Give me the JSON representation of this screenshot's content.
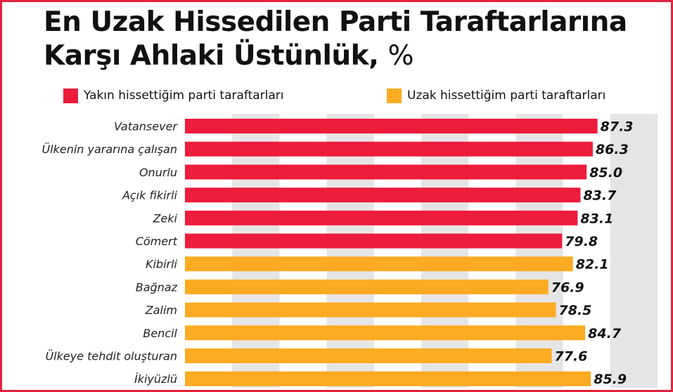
{
  "header": {
    "title": "En Uzak Hissedilen Parti Taraftarlarına Karşı Ahlaki Üstünlük,",
    "unit": "%"
  },
  "chart_data": {
    "type": "bar",
    "orientation": "horizontal",
    "title": "En Uzak Hissedilen Parti Taraftarlarına Karşı Ahlaki Üstünlük, %",
    "xlim": [
      0,
      100
    ],
    "legend_position": "top",
    "series": [
      {
        "name": "Yakın hissettiğim parti taraftarları",
        "color": "#ed1c3b"
      },
      {
        "name": "Uzak hissettiğim parti taraftarları",
        "color": "#fbab21"
      }
    ],
    "categories": [
      "Vatansever",
      "Ülkenin yararına çalışan",
      "Onurlu",
      "Açık fikirli",
      "Zeki",
      "Cömert",
      "Kibirli",
      "Bağnaz",
      "Zalim",
      "Bencil",
      "Ülkeye tehdit oluşturan",
      "İkiyüzlü"
    ],
    "values": [
      87.3,
      86.3,
      85.0,
      83.7,
      83.1,
      79.8,
      82.1,
      76.9,
      78.5,
      84.7,
      77.6,
      85.9
    ],
    "value_labels": [
      "87.3",
      "86.3",
      "85.0",
      "83.7",
      "83.1",
      "79.8",
      "82.1",
      "76.9",
      "78.5",
      "84.7",
      "77.6",
      "85.9"
    ],
    "series_index": [
      0,
      0,
      0,
      0,
      0,
      0,
      1,
      1,
      1,
      1,
      1,
      1
    ],
    "background_band_color": "#e5e5e5"
  }
}
